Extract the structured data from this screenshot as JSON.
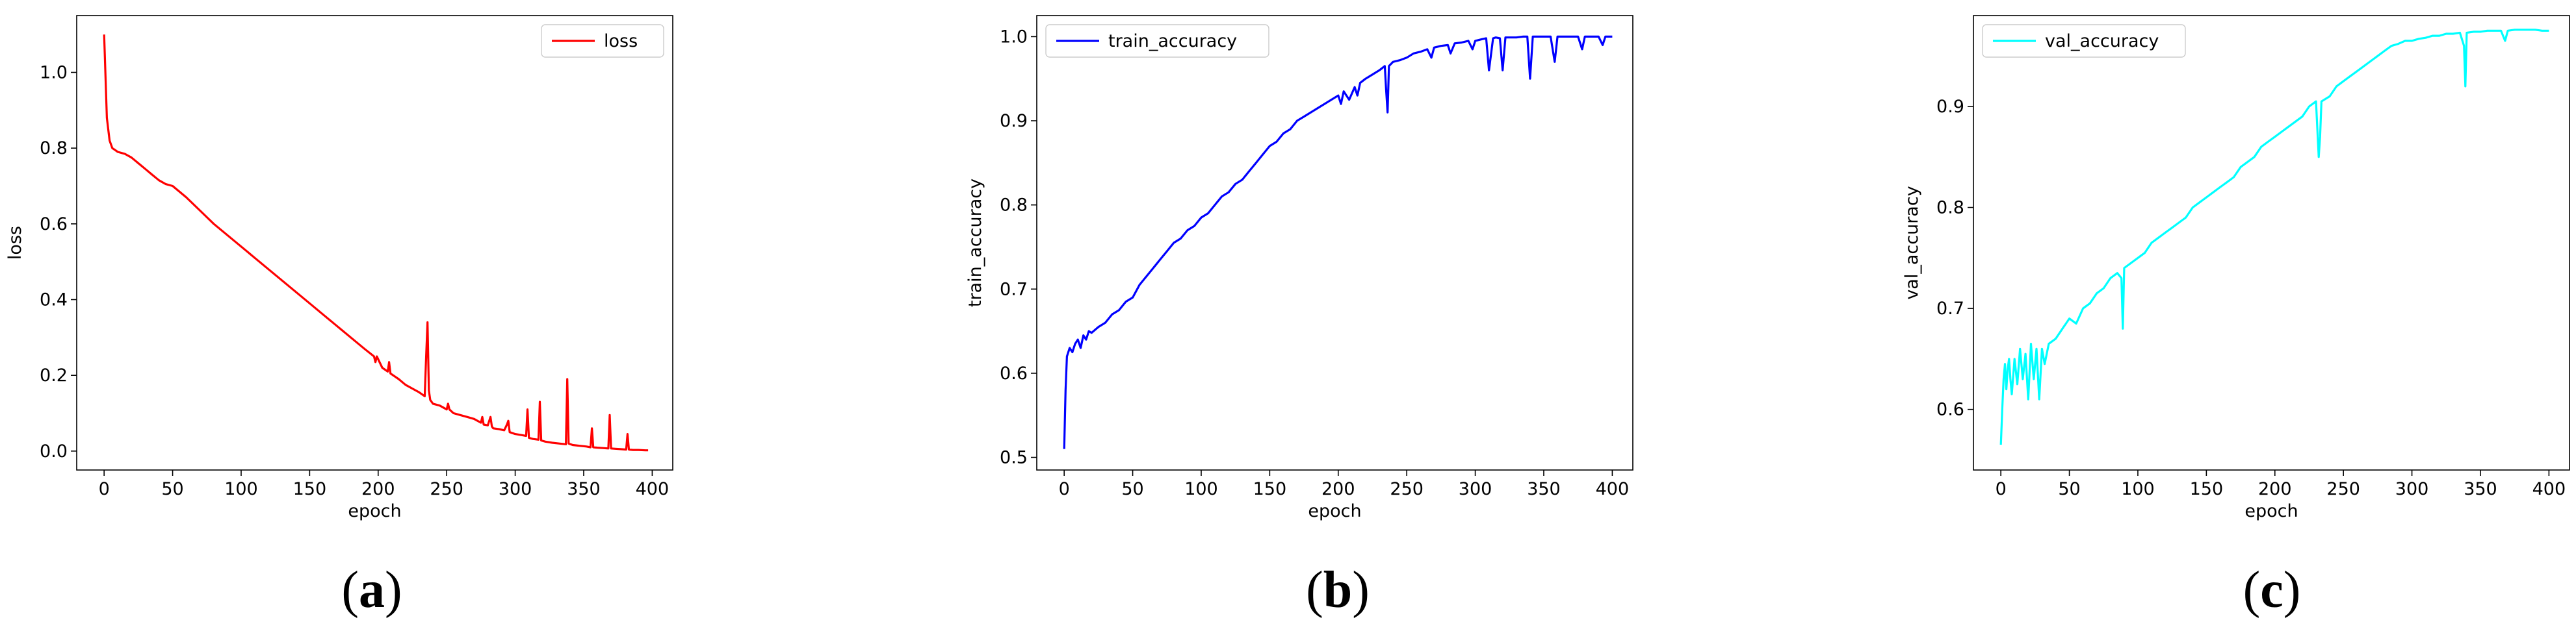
{
  "chart_data": [
    {
      "type": "line",
      "title": "",
      "xlabel": "epoch",
      "ylabel": "loss",
      "caption": {
        "open": "(",
        "letter": "a",
        "close": ")"
      },
      "legend": {
        "placement": "top-right",
        "label": "loss"
      },
      "series": [
        {
          "name": "loss",
          "color": "#ff0000",
          "x": [
            0,
            2,
            4,
            6,
            8,
            10,
            15,
            20,
            25,
            30,
            35,
            40,
            45,
            50,
            60,
            70,
            80,
            90,
            100,
            110,
            120,
            130,
            140,
            150,
            160,
            170,
            180,
            190,
            197,
            198,
            199,
            203,
            207,
            208,
            209,
            215,
            220,
            225,
            230,
            234,
            235,
            236,
            237,
            238,
            240,
            245,
            250,
            251,
            252,
            255,
            260,
            265,
            270,
            275,
            276,
            277,
            280,
            282,
            283,
            284,
            288,
            292,
            294,
            295,
            296,
            300,
            305,
            308,
            309,
            310,
            313,
            317,
            318,
            319,
            322,
            327,
            332,
            337,
            338,
            339,
            342,
            347,
            352,
            355,
            356,
            357,
            360,
            364,
            368,
            369,
            370,
            373,
            377,
            381,
            382,
            383,
            386,
            390,
            395,
            397
          ],
          "y": [
            1.1,
            0.88,
            0.82,
            0.8,
            0.795,
            0.79,
            0.785,
            0.775,
            0.76,
            0.745,
            0.73,
            0.715,
            0.705,
            0.7,
            0.67,
            0.635,
            0.6,
            0.57,
            0.54,
            0.51,
            0.48,
            0.45,
            0.42,
            0.39,
            0.36,
            0.33,
            0.3,
            0.27,
            0.25,
            0.235,
            0.25,
            0.22,
            0.21,
            0.235,
            0.205,
            0.19,
            0.175,
            0.165,
            0.155,
            0.145,
            0.25,
            0.34,
            0.16,
            0.135,
            0.125,
            0.12,
            0.11,
            0.125,
            0.11,
            0.1,
            0.095,
            0.09,
            0.085,
            0.075,
            0.09,
            0.07,
            0.068,
            0.09,
            0.065,
            0.06,
            0.058,
            0.055,
            0.07,
            0.08,
            0.05,
            0.045,
            0.042,
            0.04,
            0.11,
            0.035,
            0.032,
            0.03,
            0.13,
            0.028,
            0.025,
            0.022,
            0.02,
            0.018,
            0.19,
            0.02,
            0.016,
            0.014,
            0.012,
            0.01,
            0.06,
            0.01,
            0.009,
            0.008,
            0.007,
            0.095,
            0.007,
            0.006,
            0.005,
            0.004,
            0.045,
            0.004,
            0.003,
            0.003,
            0.002,
            0.002
          ]
        }
      ],
      "xlim": [
        -20,
        415
      ],
      "ylim": [
        -0.05,
        1.15
      ],
      "xticks": [
        0,
        50,
        100,
        150,
        200,
        250,
        300,
        350,
        400
      ],
      "yticks": [
        0.0,
        0.2,
        0.4,
        0.6,
        0.8,
        1.0
      ],
      "ytick_labels": [
        "0.0",
        "0.2",
        "0.4",
        "0.6",
        "0.8",
        "1.0"
      ]
    },
    {
      "type": "line",
      "title": "",
      "xlabel": "epoch",
      "ylabel": "train_accuracy",
      "caption": {
        "open": "(",
        "letter": "b",
        "close": ")"
      },
      "legend": {
        "placement": "top-left",
        "label": "train_accuracy"
      },
      "series": [
        {
          "name": "train_accuracy",
          "color": "#0000ff",
          "x": [
            0,
            1,
            2,
            3,
            4,
            6,
            8,
            10,
            12,
            14,
            16,
            18,
            20,
            25,
            30,
            35,
            40,
            45,
            50,
            55,
            60,
            65,
            70,
            75,
            80,
            85,
            90,
            95,
            100,
            105,
            110,
            115,
            120,
            125,
            130,
            135,
            140,
            145,
            150,
            155,
            160,
            165,
            170,
            175,
            180,
            185,
            190,
            195,
            200,
            202,
            204,
            208,
            212,
            214,
            216,
            220,
            225,
            230,
            234,
            235,
            236,
            237,
            240,
            245,
            250,
            255,
            260,
            265,
            268,
            270,
            275,
            280,
            282,
            285,
            290,
            295,
            298,
            300,
            305,
            308,
            310,
            313,
            315,
            318,
            320,
            322,
            325,
            330,
            335,
            338,
            340,
            342,
            345,
            350,
            355,
            358,
            360,
            365,
            370,
            375,
            378,
            380,
            385,
            390,
            393,
            395,
            400
          ],
          "y": [
            0.51,
            0.58,
            0.62,
            0.625,
            0.63,
            0.625,
            0.635,
            0.64,
            0.63,
            0.645,
            0.64,
            0.65,
            0.648,
            0.655,
            0.66,
            0.67,
            0.675,
            0.685,
            0.69,
            0.705,
            0.715,
            0.725,
            0.735,
            0.745,
            0.755,
            0.76,
            0.77,
            0.775,
            0.785,
            0.79,
            0.8,
            0.81,
            0.815,
            0.825,
            0.83,
            0.84,
            0.85,
            0.86,
            0.87,
            0.875,
            0.885,
            0.89,
            0.9,
            0.905,
            0.91,
            0.915,
            0.92,
            0.925,
            0.93,
            0.92,
            0.935,
            0.925,
            0.94,
            0.93,
            0.945,
            0.95,
            0.955,
            0.96,
            0.965,
            0.935,
            0.91,
            0.965,
            0.97,
            0.972,
            0.975,
            0.98,
            0.982,
            0.985,
            0.975,
            0.987,
            0.989,
            0.99,
            0.98,
            0.992,
            0.993,
            0.995,
            0.985,
            0.995,
            0.997,
            0.998,
            0.96,
            0.998,
            0.999,
            0.998,
            0.96,
            0.999,
            0.999,
            0.999,
            1.0,
            1.0,
            0.95,
            1.0,
            1.0,
            1.0,
            1.0,
            0.97,
            1.0,
            1.0,
            1.0,
            1.0,
            0.985,
            1.0,
            1.0,
            1.0,
            0.99,
            1.0,
            1.0
          ]
        }
      ],
      "xlim": [
        -20,
        415
      ],
      "ylim": [
        0.485,
        1.025
      ],
      "xticks": [
        0,
        50,
        100,
        150,
        200,
        250,
        300,
        350,
        400
      ],
      "yticks": [
        0.5,
        0.6,
        0.7,
        0.8,
        0.9,
        1.0
      ],
      "ytick_labels": [
        "0.5",
        "0.6",
        "0.7",
        "0.8",
        "0.9",
        "1.0"
      ]
    },
    {
      "type": "line",
      "title": "",
      "xlabel": "epoch",
      "ylabel": "val_accuracy",
      "caption": {
        "open": "(",
        "letter": "c",
        "close": ")"
      },
      "legend": {
        "placement": "top-left",
        "label": "val_accuracy"
      },
      "series": [
        {
          "name": "val_accuracy",
          "color": "#00ffff",
          "x": [
            0,
            1,
            2,
            3,
            4,
            5,
            6,
            7,
            8,
            10,
            12,
            14,
            16,
            18,
            20,
            22,
            24,
            26,
            28,
            30,
            32,
            35,
            40,
            45,
            50,
            55,
            60,
            65,
            70,
            75,
            80,
            85,
            88,
            89,
            90,
            95,
            100,
            105,
            110,
            115,
            120,
            125,
            130,
            135,
            140,
            145,
            150,
            155,
            160,
            165,
            170,
            175,
            180,
            185,
            190,
            195,
            200,
            205,
            210,
            215,
            220,
            225,
            230,
            232,
            233,
            234,
            240,
            245,
            250,
            255,
            260,
            265,
            270,
            275,
            280,
            285,
            290,
            295,
            300,
            305,
            310,
            315,
            320,
            325,
            330,
            335,
            338,
            339,
            340,
            345,
            350,
            355,
            360,
            365,
            368,
            370,
            375,
            380,
            385,
            390,
            395,
            400
          ],
          "y": [
            0.565,
            0.6,
            0.63,
            0.645,
            0.62,
            0.64,
            0.65,
            0.63,
            0.615,
            0.65,
            0.625,
            0.66,
            0.63,
            0.655,
            0.61,
            0.665,
            0.63,
            0.66,
            0.61,
            0.66,
            0.645,
            0.665,
            0.67,
            0.68,
            0.69,
            0.685,
            0.7,
            0.705,
            0.715,
            0.72,
            0.73,
            0.735,
            0.73,
            0.68,
            0.74,
            0.745,
            0.75,
            0.755,
            0.765,
            0.77,
            0.775,
            0.78,
            0.785,
            0.79,
            0.8,
            0.805,
            0.81,
            0.815,
            0.82,
            0.825,
            0.83,
            0.84,
            0.845,
            0.85,
            0.86,
            0.865,
            0.87,
            0.875,
            0.88,
            0.885,
            0.89,
            0.9,
            0.905,
            0.85,
            0.87,
            0.905,
            0.91,
            0.92,
            0.925,
            0.93,
            0.935,
            0.94,
            0.945,
            0.95,
            0.955,
            0.96,
            0.962,
            0.965,
            0.965,
            0.967,
            0.968,
            0.97,
            0.97,
            0.972,
            0.972,
            0.973,
            0.96,
            0.92,
            0.973,
            0.974,
            0.974,
            0.975,
            0.975,
            0.975,
            0.965,
            0.975,
            0.976,
            0.976,
            0.976,
            0.976,
            0.975,
            0.975
          ]
        }
      ],
      "xlim": [
        -20,
        415
      ],
      "ylim": [
        0.54,
        0.99
      ],
      "xticks": [
        0,
        50,
        100,
        150,
        200,
        250,
        300,
        350,
        400
      ],
      "yticks": [
        0.6,
        0.7,
        0.8,
        0.9
      ],
      "ytick_labels": [
        "0.6",
        "0.7",
        "0.8",
        "0.9"
      ]
    }
  ]
}
